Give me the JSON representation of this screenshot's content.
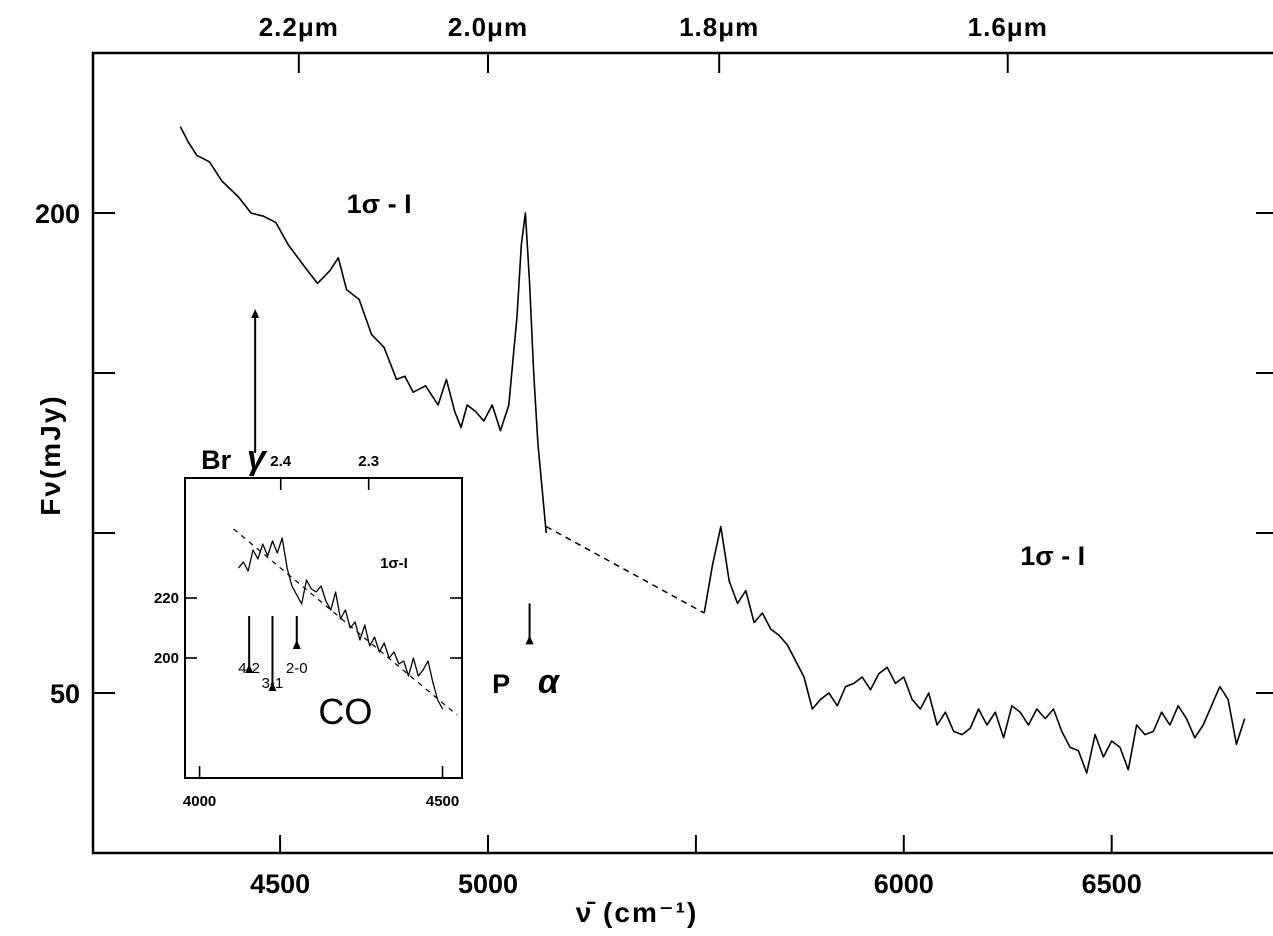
{
  "chart_data": [
    {
      "type": "line",
      "title": "",
      "xlabel": "ν̄ (cm⁻¹)",
      "ylabel": "Fν(mJy)",
      "xlim": [
        4050,
        6900
      ],
      "ylim": [
        0,
        250
      ],
      "y_scale": "linear (ticks every 50 mJy, only 50 and 200 labelled)",
      "grid": false,
      "x_ticks": [
        4500,
        5000,
        5500,
        6000,
        6500
      ],
      "x_tick_labels": [
        "4500",
        "5000",
        "",
        "6000",
        "6500"
      ],
      "y_ticks": [
        50,
        100,
        150,
        200
      ],
      "y_tick_labels": [
        "50",
        "",
        "",
        "200"
      ],
      "top_axis": {
        "ticks_cm": [
          4545,
          5000,
          5556,
          6250
        ],
        "tick_labels": [
          "2.2μm",
          "2.0μm",
          "1.8μm",
          "1.6μm"
        ]
      },
      "series": [
        {
          "x": [
            4260,
            4280,
            4300,
            4330,
            4360,
            4400,
            4430,
            4460,
            4490,
            4520,
            4560,
            4590,
            4620,
            4640,
            4660,
            4690,
            4720,
            4750,
            4780,
            4800,
            4820,
            4850,
            4880,
            4900,
            4920,
            4935,
            4950,
            4970,
            4990,
            5010,
            5030,
            5050,
            5070,
            5080,
            5090,
            5100,
            5110,
            5120,
            5140
          ],
          "y": [
            227,
            222,
            218,
            216,
            210,
            205,
            200,
            199,
            197,
            190,
            183,
            178,
            182,
            186,
            176,
            173,
            162,
            158,
            148,
            149,
            144,
            146,
            140,
            148,
            138,
            133,
            140,
            138,
            135,
            140,
            132,
            140,
            168,
            190,
            200,
            178,
            150,
            128,
            100
          ]
        },
        {
          "x": [
            5520,
            5540,
            5560,
            5580,
            5600,
            5620,
            5640,
            5660,
            5680,
            5700,
            5720,
            5740,
            5760,
            5780,
            5800,
            5820,
            5840,
            5860,
            5880,
            5900,
            5920,
            5940,
            5960,
            5980,
            6000,
            6020,
            6040,
            6060,
            6080,
            6100,
            6120,
            6140,
            6160,
            6180,
            6200,
            6220,
            6240,
            6260,
            6280,
            6300,
            6320,
            6340,
            6360,
            6380,
            6400,
            6420,
            6440,
            6460,
            6480,
            6500,
            6520,
            6540,
            6560,
            6580,
            6600,
            6620,
            6640,
            6660,
            6680,
            6700,
            6720,
            6740,
            6760,
            6780,
            6800,
            6820
          ],
          "y": [
            75,
            90,
            102,
            85,
            78,
            82,
            72,
            75,
            70,
            68,
            65,
            60,
            55,
            45,
            48,
            50,
            46,
            52,
            53,
            55,
            51,
            56,
            58,
            53,
            55,
            48,
            45,
            50,
            40,
            44,
            38,
            37,
            39,
            45,
            40,
            44,
            36,
            46,
            44,
            40,
            45,
            42,
            45,
            38,
            33,
            32,
            25,
            37,
            30,
            35,
            33,
            26,
            40,
            37,
            38,
            44,
            40,
            46,
            42,
            36,
            40,
            46,
            52,
            48,
            34,
            42
          ]
        }
      ],
      "gap_dashed": {
        "x": [
          5140,
          5520
        ],
        "y": [
          102,
          75
        ]
      },
      "annotations": [
        {
          "text": "1σ - I",
          "x": 4660,
          "y": 200
        },
        {
          "text": "Br",
          "x": 4310,
          "y": 120
        },
        {
          "text": "γ",
          "x": 4420,
          "y": 120
        },
        {
          "text": "P",
          "x": 5010,
          "y": 50
        },
        {
          "text": "α",
          "x": 5120,
          "y": 50
        },
        {
          "text": "1σ - I",
          "x": 6280,
          "y": 90
        }
      ],
      "arrows": [
        {
          "label": "Br γ",
          "x": 4440,
          "y_from": 170,
          "y_to": 125
        },
        {
          "label": "P α",
          "x": 5100,
          "y_from": 68,
          "y_to": 78
        }
      ]
    },
    {
      "type": "line",
      "title": "",
      "xlabel": "",
      "ylabel": "",
      "xlim": [
        3970,
        4540
      ],
      "ylim": [
        160,
        260
      ],
      "grid": false,
      "x_ticks": [
        4000,
        4500
      ],
      "x_tick_labels": [
        "4000",
        "4500"
      ],
      "y_ticks": [
        200,
        220
      ],
      "y_tick_labels": [
        "200",
        "220"
      ],
      "top_axis": {
        "ticks_cm": [
          4167,
          4348
        ],
        "tick_labels": [
          "2.4",
          "2.3"
        ]
      },
      "series": [
        {
          "x": [
            4080,
            4090,
            4100,
            4110,
            4120,
            4130,
            4140,
            4150,
            4160,
            4170,
            4180,
            4190,
            4200,
            4210,
            4220,
            4230,
            4240,
            4250,
            4260,
            4270,
            4280,
            4290,
            4300,
            4310,
            4320,
            4330,
            4340,
            4350,
            4360,
            4370,
            4380,
            4390,
            4400,
            4410,
            4420,
            4430,
            4440,
            4450,
            4460,
            4470,
            4480,
            4490,
            4500
          ],
          "y": [
            230,
            232,
            229,
            236,
            233,
            238,
            234,
            239,
            235,
            240,
            230,
            224,
            221,
            218,
            226,
            223,
            222,
            224,
            219,
            216,
            222,
            213,
            216,
            210,
            212,
            206,
            211,
            204,
            207,
            202,
            205,
            200,
            202,
            198,
            199,
            194,
            200,
            194,
            196,
            199,
            192,
            186,
            183
          ]
        }
      ],
      "trend_dashed": {
        "x": [
          4070,
          4530
        ],
        "y": [
          243,
          181
        ]
      },
      "annotations": [
        {
          "text": "1σ-I",
          "x": 4400,
          "y": 230
        },
        {
          "text": "4-2",
          "x": 4102,
          "y": 195
        },
        {
          "text": "3-1",
          "x": 4150,
          "y": 190
        },
        {
          "text": "2-0",
          "x": 4200,
          "y": 195
        },
        {
          "text": "CO",
          "x": 4300,
          "y": 178
        }
      ],
      "arrows": [
        {
          "label": "4-2",
          "x": 4102,
          "y_from": 198,
          "y_to": 214
        },
        {
          "label": "3-1",
          "x": 4150,
          "y_from": 192,
          "y_to": 214
        },
        {
          "label": "2-0",
          "x": 4200,
          "y_from": 206,
          "y_to": 214
        }
      ]
    }
  ]
}
